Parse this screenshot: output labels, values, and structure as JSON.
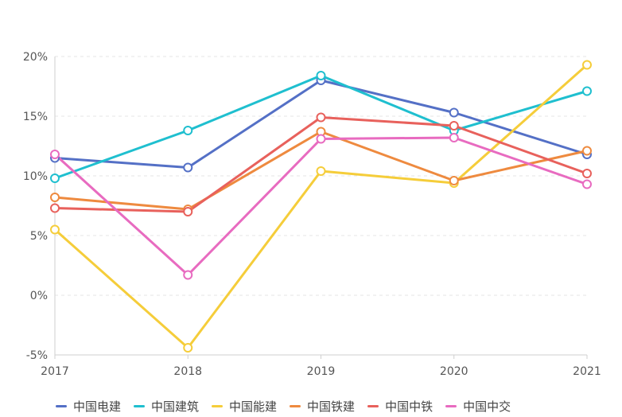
{
  "chart_data": {
    "type": "line",
    "title": "",
    "xlabel": "",
    "ylabel": "",
    "x": [
      "2017",
      "2018",
      "2019",
      "2020",
      "2021"
    ],
    "ylim": [
      -5,
      20
    ],
    "yticks": [
      -5,
      0,
      5,
      10,
      15,
      20
    ],
    "ytick_suffix": "%",
    "grid": "horizontal dashed",
    "legend_position": "bottom",
    "series": [
      {
        "name": "中国电建",
        "color": "#5470c6",
        "values": [
          11.5,
          10.7,
          18.0,
          15.3,
          11.8
        ]
      },
      {
        "name": "中国建筑",
        "color": "#1fbfcf",
        "values": [
          9.8,
          13.8,
          18.4,
          13.8,
          17.1
        ]
      },
      {
        "name": "中国能建",
        "color": "#f5cd3a",
        "values": [
          5.5,
          -4.4,
          10.4,
          9.4,
          19.3
        ]
      },
      {
        "name": "中国铁建",
        "color": "#ee8a3f",
        "values": [
          8.2,
          7.2,
          13.7,
          9.6,
          12.1
        ]
      },
      {
        "name": "中国中铁",
        "color": "#e8615c",
        "values": [
          7.3,
          7.0,
          14.9,
          14.2,
          10.2
        ]
      },
      {
        "name": "中国中交",
        "color": "#e86bc0",
        "values": [
          11.8,
          1.7,
          13.1,
          13.2,
          9.3
        ]
      }
    ]
  }
}
